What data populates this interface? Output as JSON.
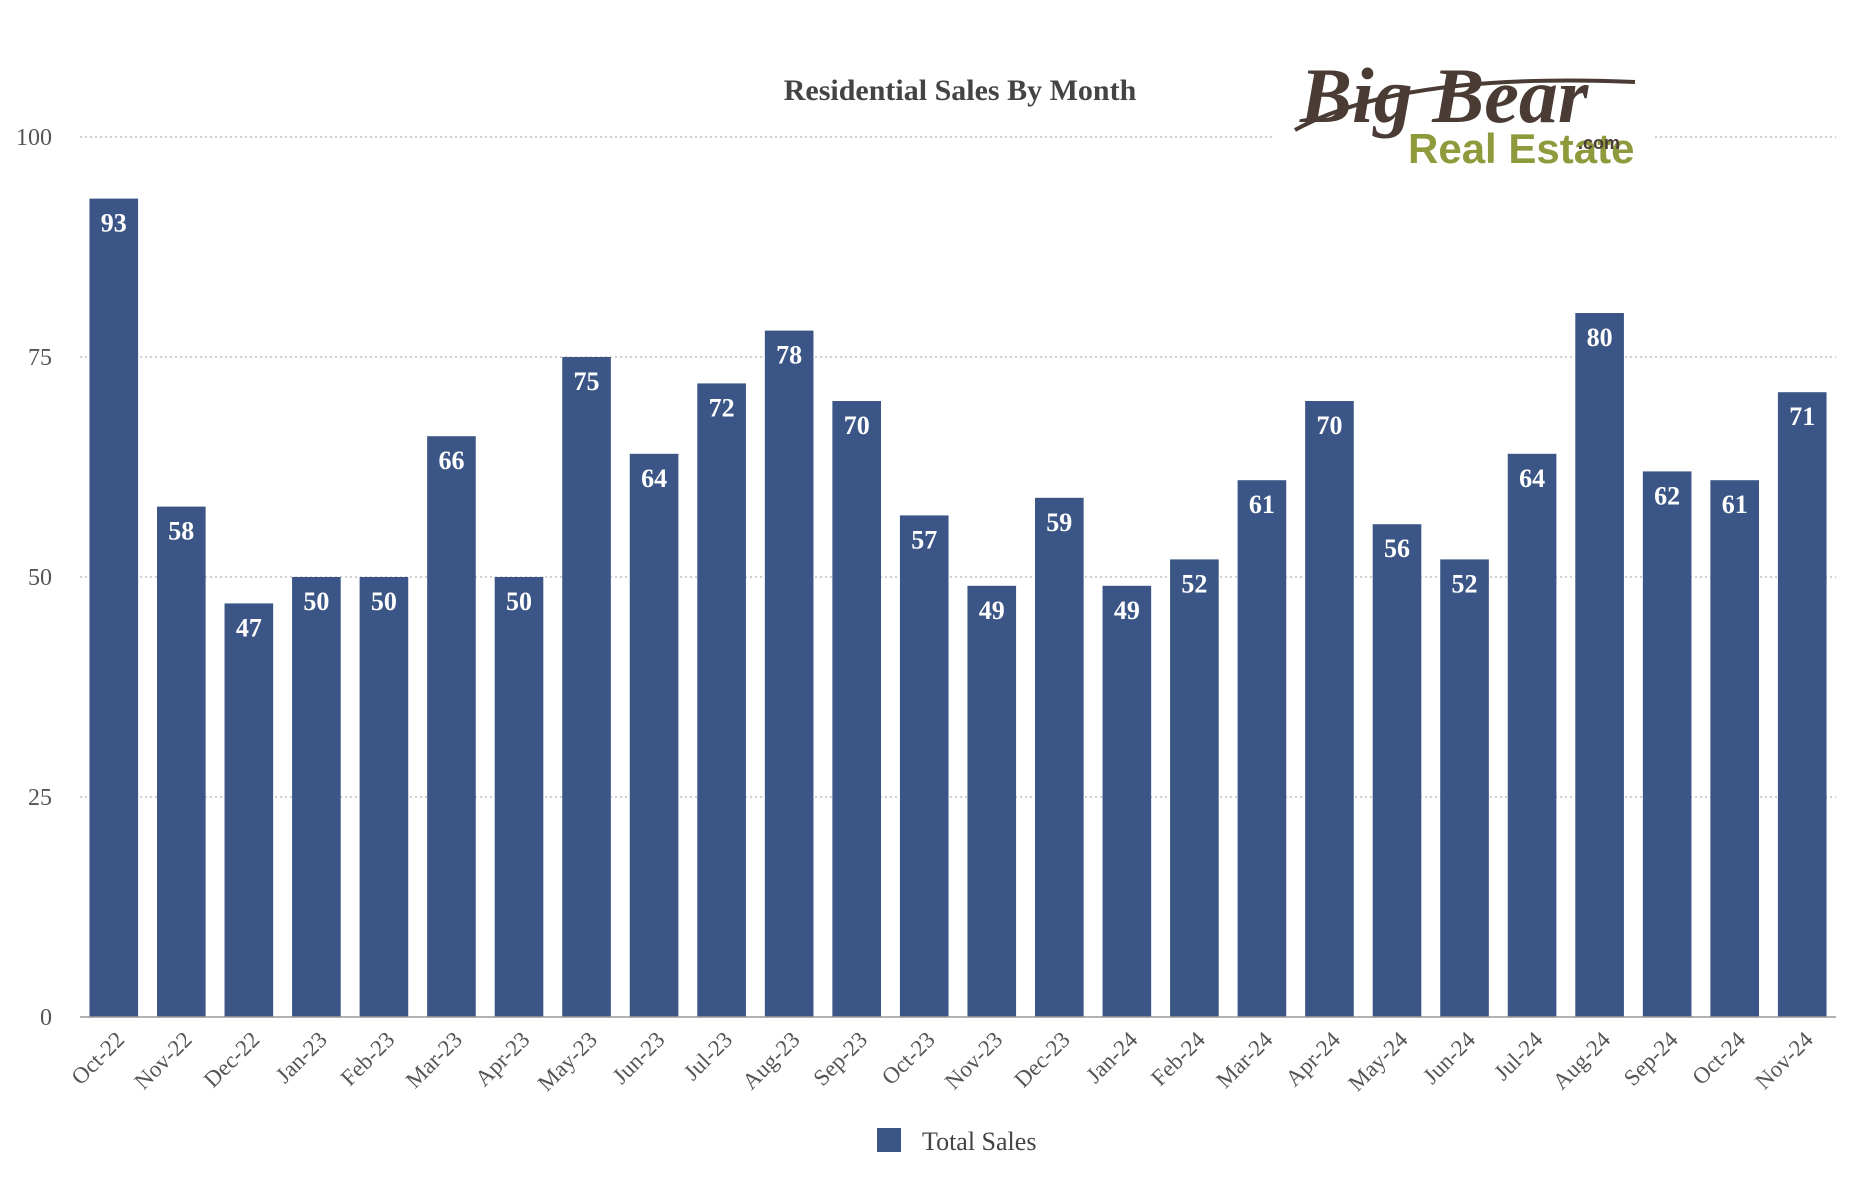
{
  "chart_data": {
    "type": "bar",
    "title": "Residential Sales By Month",
    "categories": [
      "Oct-22",
      "Nov-22",
      "Dec-22",
      "Jan-23",
      "Feb-23",
      "Mar-23",
      "Apr-23",
      "May-23",
      "Jun-23",
      "Jul-23",
      "Aug-23",
      "Sep-23",
      "Oct-23",
      "Nov-23",
      "Dec-23",
      "Jan-24",
      "Feb-24",
      "Mar-24",
      "Apr-24",
      "May-24",
      "Jun-24",
      "Jul-24",
      "Aug-24",
      "Sep-24",
      "Oct-24",
      "Nov-24"
    ],
    "series": [
      {
        "name": "Total Sales",
        "color": "#3b5686",
        "values": [
          93,
          58,
          47,
          50,
          50,
          66,
          50,
          75,
          64,
          72,
          78,
          70,
          57,
          49,
          59,
          49,
          52,
          61,
          70,
          56,
          52,
          64,
          80,
          62,
          61,
          71
        ]
      }
    ],
    "ylim": [
      0,
      100
    ],
    "yticks": [
      0,
      25,
      50,
      75,
      100
    ],
    "grid": true,
    "data_labels": true,
    "legend_position": "bottom"
  },
  "logo": {
    "line1": "Big Bear",
    "line2": "Real Estate",
    "suffix": ".com"
  }
}
